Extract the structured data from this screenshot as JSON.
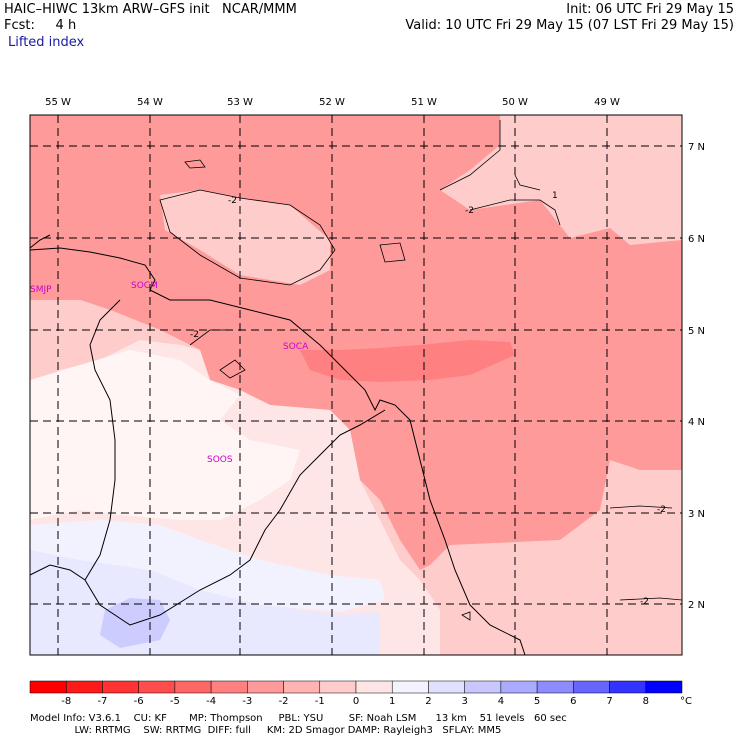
{
  "header": {
    "model_line": "HAIC–HIWC 13km ARW–GFS init   NCAR/MMM",
    "init_line": "Init: 06 UTC Fri 29 May 15",
    "fcst_line": "Fcst:     4 h",
    "valid_line": "Valid: 10 UTC Fri 29 May 15 (07 LST Fri 29 May 15)",
    "field_name": "Lifted index"
  },
  "map": {
    "lon_labels": [
      "55 W",
      "54 W",
      "53 W",
      "52 W",
      "51 W",
      "50 W",
      "49 W"
    ],
    "lat_labels": [
      "7 N",
      "6 N",
      "5 N",
      "4 N",
      "3 N",
      "2 N"
    ],
    "stations": [
      "SMJP",
      "SOCM",
      "SOCA",
      "SOOS"
    ],
    "contour_labels": [
      "-2",
      "-2",
      "-2",
      "1",
      "-2",
      "-2"
    ]
  },
  "colorbar": {
    "unit": "°C",
    "ticks": [
      "-8",
      "-7",
      "-6",
      "-5",
      "-4",
      "-3",
      "-2",
      "-1",
      "0",
      "1",
      "2",
      "3",
      "4",
      "5",
      "6",
      "7",
      "8"
    ],
    "colors": [
      "#ff1a1a",
      "#ff3333",
      "#ff4d4d",
      "#ff6666",
      "#ff8080",
      "#ff9a9a",
      "#ffb3b3",
      "#ffcccc",
      "#ffe6e6",
      "#f3f3ff",
      "#e0e0ff",
      "#c8c8ff",
      "#aaaaff",
      "#8c8cff",
      "#6666ff",
      "#3333ff",
      "#0000ff"
    ]
  },
  "footer": {
    "line1": "Model Info: V3.6.1    CU: KF       MP: Thompson     PBL: YSU        SF: Noah LSM      13 km    51 levels   60 sec",
    "line2": "              LW: RRTMG    SW: RRTMG  DIFF: full     KM: 2D Smagor DAMP: Rayleigh3   SFLAY: MM5"
  }
}
